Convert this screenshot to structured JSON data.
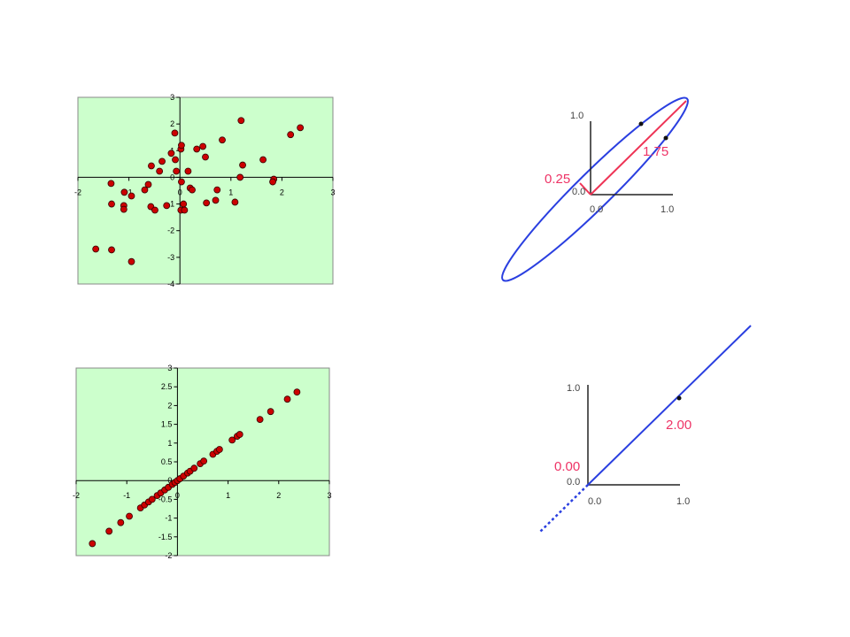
{
  "chart_data": [
    {
      "type": "scatter",
      "xlim": [
        -2,
        3
      ],
      "ylim": [
        -4,
        3
      ],
      "xticks": [
        -2,
        -1,
        0,
        1,
        2,
        3
      ],
      "yticks": [
        -4,
        -3,
        -2,
        -1,
        0,
        1,
        2,
        3
      ],
      "background": "#ccffcc",
      "color": "#cc0000",
      "x": [
        -1.35,
        -1.09,
        -0.95,
        -1.34,
        -1.1,
        -1.1,
        -0.69,
        -0.62,
        -0.56,
        -0.4,
        -0.35,
        -0.17,
        -0.09,
        -0.1,
        0.02,
        0.03,
        -0.07,
        0.16,
        0.03,
        0.2,
        0.24,
        0.33,
        0.45,
        0.5,
        0.83,
        1.23,
        1.18,
        1.2,
        1.63,
        1.84,
        1.82,
        2.17,
        2.36,
        0.73,
        0.7,
        0.52,
        1.08,
        0.07,
        0.02,
        0.09,
        -0.26,
        -0.57,
        -0.49,
        -1.65,
        -1.34,
        -0.95
      ],
      "y": [
        -0.23,
        -0.56,
        -0.7,
        -1.0,
        -1.06,
        -1.2,
        -0.47,
        -0.27,
        0.43,
        0.23,
        0.6,
        0.9,
        0.66,
        1.66,
        1.06,
        1.2,
        0.23,
        0.23,
        -0.17,
        -0.4,
        -0.47,
        1.06,
        1.16,
        0.76,
        1.4,
        0.46,
        0,
        2.13,
        0.66,
        -0.07,
        -0.17,
        1.6,
        1.86,
        -0.47,
        -0.86,
        -0.96,
        -0.93,
        -1.0,
        -1.23,
        -1.23,
        -1.06,
        -1.1,
        -1.23,
        -2.69,
        -2.72,
        -3.16
      ]
    },
    {
      "type": "scatter",
      "xlim": [
        -2,
        3
      ],
      "ylim": [
        -2,
        3
      ],
      "xticks": [
        -2,
        -1,
        0,
        1,
        2,
        3
      ],
      "yticks": [
        -2,
        -1.5,
        -1,
        -0.5,
        0,
        0.5,
        1,
        1.5,
        2,
        2.5,
        3
      ],
      "background": "#ccffcc",
      "color": "#cc0000",
      "x": [
        -1.68,
        -1.35,
        -1.12,
        -0.95,
        -0.73,
        -0.65,
        -0.57,
        -0.5,
        -0.4,
        -0.33,
        -0.25,
        -0.18,
        -0.1,
        -0.05,
        0.0,
        0.05,
        0.12,
        0.2,
        0.25,
        0.33,
        0.45,
        0.52,
        0.7,
        0.78,
        0.83,
        1.08,
        1.18,
        1.23,
        1.63,
        1.84,
        2.17,
        2.36
      ],
      "y": [
        -1.68,
        -1.35,
        -1.12,
        -0.95,
        -0.73,
        -0.65,
        -0.57,
        -0.5,
        -0.4,
        -0.33,
        -0.25,
        -0.18,
        -0.1,
        -0.05,
        0.0,
        0.05,
        0.12,
        0.2,
        0.25,
        0.33,
        0.45,
        0.52,
        0.7,
        0.78,
        0.83,
        1.08,
        1.18,
        1.23,
        1.63,
        1.84,
        2.17,
        2.36
      ]
    }
  ],
  "diagrams": [
    {
      "y_tick": "1.0",
      "origin_y": "0.0",
      "origin_x": "0.0",
      "x_tick": "1.0",
      "short": "0.25",
      "long": "1.75"
    },
    {
      "y_tick": "1.0",
      "origin_y": "0.0",
      "origin_x": "0.0",
      "x_tick": "1.0",
      "short": "0.00",
      "long": "2.00"
    }
  ]
}
